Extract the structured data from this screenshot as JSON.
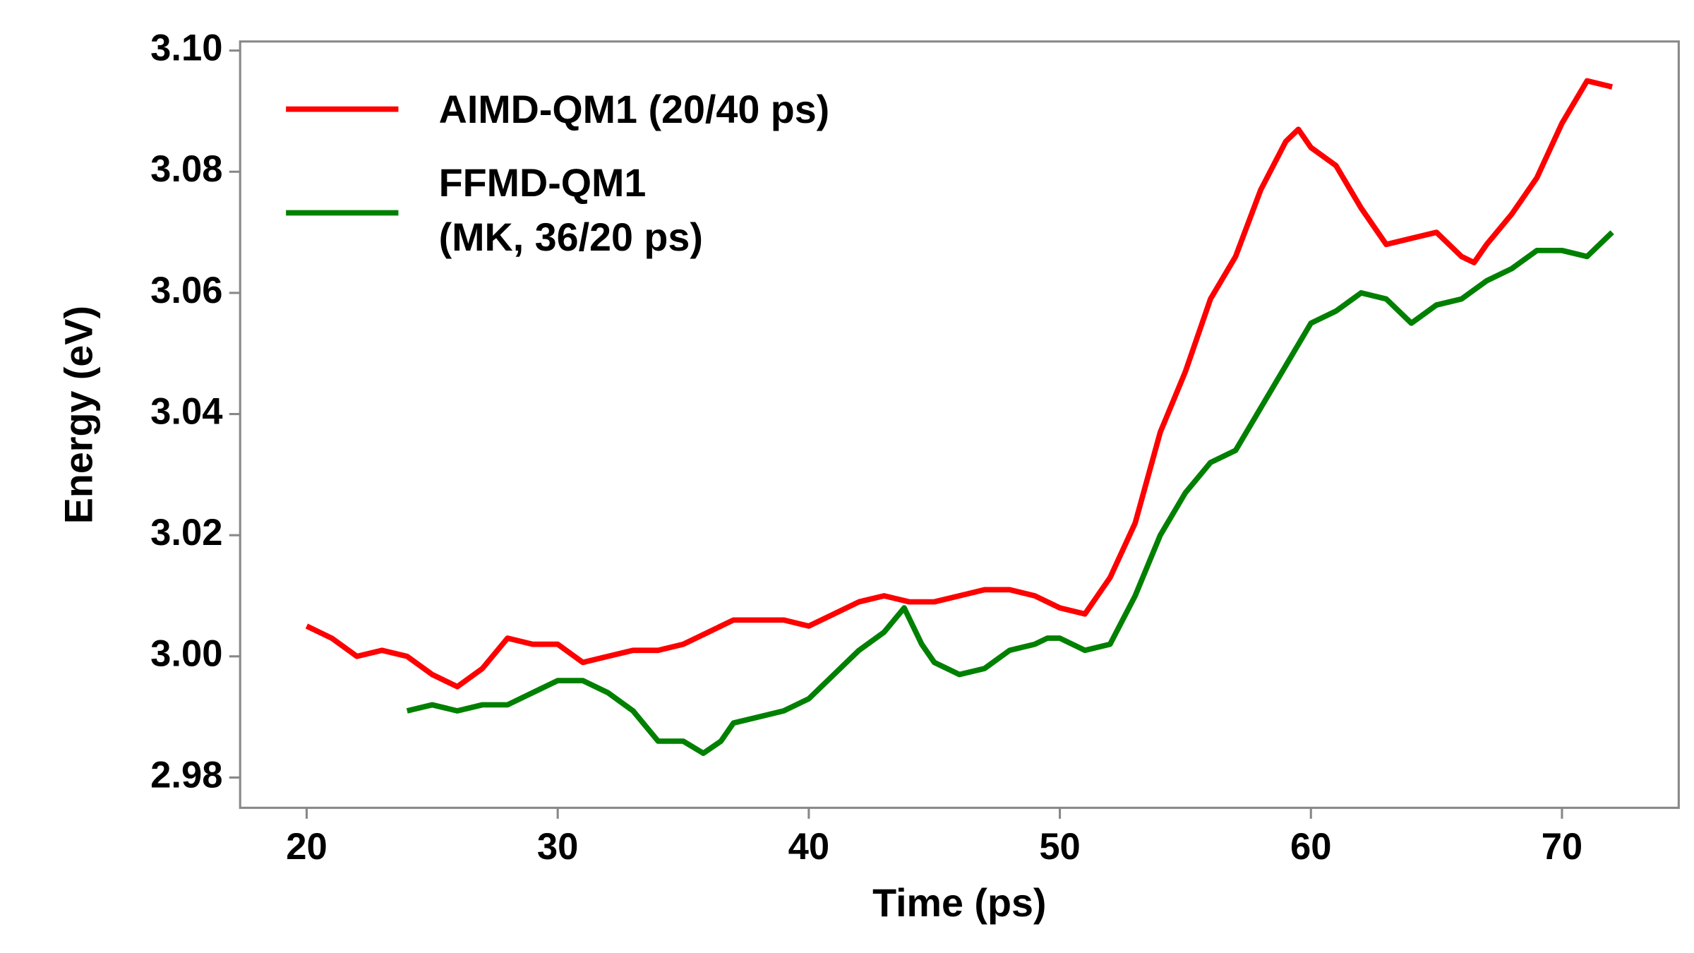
{
  "chart_data": {
    "type": "line",
    "x_label": "Time (ps)",
    "y_label": "Energy (eV)",
    "xlim": [
      17.35,
      74.65
    ],
    "ylim": [
      2.975,
      3.1015
    ],
    "xticks": [
      20,
      30,
      40,
      50,
      60,
      70
    ],
    "yticks": [
      2.98,
      3.02,
      3.04,
      3.06,
      3.08,
      {
        "value": 3.0,
        "label": "3.00"
      },
      {
        "value": 3.1,
        "label": "3.10"
      }
    ],
    "grid": false,
    "legend": "upper left",
    "series": [
      {
        "name": "AIMD-QM1 (20/40 ps)",
        "color": "#ff0000",
        "x": [
          20,
          21,
          22,
          23,
          24,
          25,
          26,
          27,
          28,
          29,
          30,
          31,
          32,
          33,
          34,
          35,
          36,
          37,
          38,
          39,
          40,
          41,
          42,
          43,
          44,
          45,
          46,
          47,
          48,
          49,
          50,
          51,
          52,
          53,
          54,
          55,
          56,
          57,
          58,
          59,
          59.5,
          60,
          61,
          62,
          63,
          64,
          65,
          66,
          66.5,
          67,
          68,
          69,
          70,
          71,
          72
        ],
        "values": [
          3.005,
          3.003,
          3.0,
          3.001,
          3.0,
          2.997,
          2.995,
          2.998,
          3.003,
          3.002,
          3.002,
          2.999,
          3.0,
          3.001,
          3.001,
          3.002,
          3.004,
          3.006,
          3.006,
          3.006,
          3.005,
          3.007,
          3.009,
          3.01,
          3.009,
          3.009,
          3.01,
          3.011,
          3.011,
          3.01,
          3.008,
          3.007,
          3.013,
          3.022,
          3.037,
          3.047,
          3.059,
          3.066,
          3.077,
          3.085,
          3.087,
          3.084,
          3.081,
          3.074,
          3.068,
          3.069,
          3.07,
          3.066,
          3.065,
          3.068,
          3.073,
          3.079,
          3.088,
          3.095,
          3.094
        ]
      },
      {
        "name": "FFMD-QM1\n(MK, 36/20 ps)",
        "color": "#008000",
        "x": [
          24,
          25,
          26,
          27,
          28,
          29,
          30,
          31,
          32,
          33,
          34,
          35,
          35.8,
          36.5,
          37,
          38,
          39,
          40,
          41,
          42,
          43,
          43.8,
          44.5,
          45,
          46,
          47,
          48,
          49,
          49.5,
          50,
          51,
          52,
          53,
          54,
          55,
          56,
          57,
          58,
          59,
          60,
          61,
          62,
          63,
          64,
          65,
          66,
          67,
          68,
          69,
          70,
          71,
          72
        ],
        "values": [
          2.991,
          2.992,
          2.991,
          2.992,
          2.992,
          2.994,
          2.996,
          2.996,
          2.994,
          2.991,
          2.986,
          2.986,
          2.984,
          2.986,
          2.989,
          2.99,
          2.991,
          2.993,
          2.997,
          3.001,
          3.004,
          3.008,
          3.002,
          2.999,
          2.997,
          2.998,
          3.001,
          3.002,
          3.003,
          3.003,
          3.001,
          3.002,
          3.01,
          3.02,
          3.027,
          3.032,
          3.034,
          3.041,
          3.048,
          3.055,
          3.057,
          3.06,
          3.059,
          3.055,
          3.058,
          3.059,
          3.062,
          3.064,
          3.067,
          3.067,
          3.066,
          3.07
        ]
      }
    ]
  }
}
